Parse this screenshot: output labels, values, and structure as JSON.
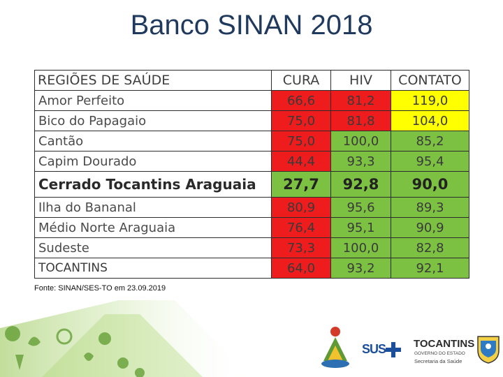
{
  "title": "Banco SINAN 2018",
  "table": {
    "headers": {
      "region": "REGIÕES DE SAÚDE",
      "cura": "CURA",
      "hiv": "HIV",
      "contato": "CONTATO"
    },
    "rows": [
      {
        "region": "Amor Perfeito",
        "cura": "66,6",
        "hiv": "81,2",
        "contato": "119,0"
      },
      {
        "region": "Bico do Papagaio",
        "cura": "75,0",
        "hiv": "81,8",
        "contato": "104,0"
      },
      {
        "region": "Cantão",
        "cura": "75,0",
        "hiv": "100,0",
        "contato": "85,2"
      },
      {
        "region": "Capim Dourado",
        "cura": "44,4",
        "hiv": "93,3",
        "contato": "95,4"
      },
      {
        "region": "Cerrado Tocantins Araguaia",
        "cura": "27,7",
        "hiv": "92,8",
        "contato": "90,0"
      },
      {
        "region": "Ilha do Bananal",
        "cura": "80,9",
        "hiv": "95,6",
        "contato": "89,3"
      },
      {
        "region": "Médio Norte Araguaia",
        "cura": "76,4",
        "hiv": "95,1",
        "contato": "90,9"
      },
      {
        "region": "Sudeste",
        "cura": "73,3",
        "hiv": "100,0",
        "contato": "82,8"
      },
      {
        "region": "TOCANTINS",
        "cura": "64,0",
        "hiv": "93,2",
        "contato": "92,1"
      }
    ]
  },
  "colors": {
    "red": "#ee1c1c",
    "yellow": "#ffff00",
    "green": "#7cc142",
    "title": "#1f3a5c"
  },
  "source": "Fonte: SINAN/SES-TO em 23.09.2019",
  "logos": {
    "sus": "SUS",
    "tocantins": "TOCANTINS",
    "governo": "GOVERNO DO ESTADO",
    "secretaria": "Secretaria da Saúde"
  }
}
